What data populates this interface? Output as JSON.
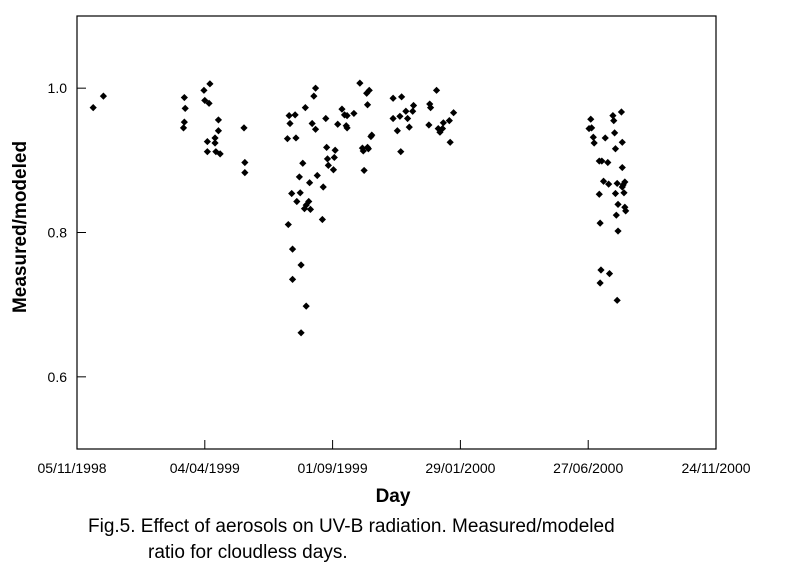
{
  "chart_data": {
    "type": "scatter",
    "title": "",
    "xlabel": "Day",
    "ylabel": "Measured/modeled",
    "x_axis": {
      "type": "date",
      "range": [
        "1998-11-05",
        "2000-11-24"
      ],
      "ticks": [
        "1998-11-05",
        "1999-04-04",
        "1999-09-01",
        "2000-01-29",
        "2000-06-27",
        "2000-11-24"
      ],
      "tick_labels": [
        "05/11/1998",
        "04/04/1999",
        "01/09/1999",
        "29/01/2000",
        "27/06/2000",
        "24/11/2000"
      ]
    },
    "y_axis": {
      "range": [
        0.5,
        1.1
      ],
      "ticks": [
        0.6,
        0.8,
        1.0
      ],
      "tick_labels": [
        "0.6",
        "0.8",
        "1.0"
      ]
    },
    "grid": false,
    "marker": "diamond",
    "marker_color": "#000000",
    "series": [
      {
        "points": [
          [
            "1998-11-24",
            0.973
          ],
          [
            "1998-12-06",
            0.989
          ],
          [
            "1999-03-10",
            0.945
          ],
          [
            "1999-03-11",
            0.953
          ],
          [
            "1999-03-11",
            0.987
          ],
          [
            "1999-03-12",
            0.972
          ],
          [
            "1999-04-03",
            0.997
          ],
          [
            "1999-04-04",
            0.983
          ],
          [
            "1999-04-07",
            0.926
          ],
          [
            "1999-04-07",
            0.912
          ],
          [
            "1999-04-09",
            0.979
          ],
          [
            "1999-04-10",
            1.006
          ],
          [
            "1999-04-16",
            0.931
          ],
          [
            "1999-04-16",
            0.924
          ],
          [
            "1999-04-17",
            0.912
          ],
          [
            "1999-04-20",
            0.956
          ],
          [
            "1999-04-20",
            0.941
          ],
          [
            "1999-04-22",
            0.909
          ],
          [
            "1999-05-20",
            0.945
          ],
          [
            "1999-05-21",
            0.897
          ],
          [
            "1999-05-21",
            0.883
          ],
          [
            "1999-07-10",
            0.93
          ],
          [
            "1999-07-11",
            0.811
          ],
          [
            "1999-07-12",
            0.962
          ],
          [
            "1999-07-13",
            0.951
          ],
          [
            "1999-07-15",
            0.854
          ],
          [
            "1999-07-16",
            0.777
          ],
          [
            "1999-07-16",
            0.735
          ],
          [
            "1999-07-19",
            0.963
          ],
          [
            "1999-07-20",
            0.931
          ],
          [
            "1999-07-21",
            0.843
          ],
          [
            "1999-07-24",
            0.877
          ],
          [
            "1999-07-25",
            0.855
          ],
          [
            "1999-07-26",
            0.755
          ],
          [
            "1999-07-26",
            0.661
          ],
          [
            "1999-07-28",
            0.896
          ],
          [
            "1999-07-30",
            0.833
          ],
          [
            "1999-07-31",
            0.973
          ],
          [
            "1999-08-01",
            0.838
          ],
          [
            "1999-08-01",
            0.698
          ],
          [
            "1999-08-04",
            0.843
          ],
          [
            "1999-08-05",
            0.869
          ],
          [
            "1999-08-06",
            0.832
          ],
          [
            "1999-08-08",
            0.951
          ],
          [
            "1999-08-10",
            0.989
          ],
          [
            "1999-08-12",
            1.0
          ],
          [
            "1999-08-12",
            0.943
          ],
          [
            "1999-08-14",
            0.879
          ],
          [
            "1999-08-20",
            0.818
          ],
          [
            "1999-08-21",
            0.863
          ],
          [
            "1999-08-24",
            0.958
          ],
          [
            "1999-08-25",
            0.918
          ],
          [
            "1999-08-26",
            0.902
          ],
          [
            "1999-08-27",
            0.893
          ],
          [
            "1999-09-02",
            0.887
          ],
          [
            "1999-09-03",
            0.904
          ],
          [
            "1999-09-04",
            0.914
          ],
          [
            "1999-09-07",
            0.95
          ],
          [
            "1999-09-12",
            0.971
          ],
          [
            "1999-09-15",
            0.963
          ],
          [
            "1999-09-17",
            0.948
          ],
          [
            "1999-09-18",
            0.945
          ],
          [
            "1999-09-18",
            0.962
          ],
          [
            "1999-09-26",
            0.965
          ],
          [
            "1999-10-03",
            1.007
          ],
          [
            "1999-10-06",
            0.917
          ],
          [
            "1999-10-07",
            0.913
          ],
          [
            "1999-10-08",
            0.886
          ],
          [
            "1999-10-11",
            0.993
          ],
          [
            "1999-10-12",
            0.977
          ],
          [
            "1999-10-12",
            0.918
          ],
          [
            "1999-10-13",
            0.916
          ],
          [
            "1999-10-14",
            0.997
          ],
          [
            "1999-10-16",
            0.933
          ],
          [
            "1999-10-17",
            0.935
          ],
          [
            "1999-11-11",
            0.986
          ],
          [
            "1999-11-11",
            0.958
          ],
          [
            "1999-11-16",
            0.941
          ],
          [
            "1999-11-19",
            0.961
          ],
          [
            "1999-11-20",
            0.912
          ],
          [
            "1999-11-21",
            0.988
          ],
          [
            "1999-11-26",
            0.968
          ],
          [
            "1999-11-28",
            0.958
          ],
          [
            "1999-11-30",
            0.946
          ],
          [
            "1999-12-04",
            0.968
          ],
          [
            "1999-12-05",
            0.976
          ],
          [
            "1999-12-23",
            0.949
          ],
          [
            "1999-12-24",
            0.978
          ],
          [
            "1999-12-25",
            0.973
          ],
          [
            "2000-01-01",
            0.997
          ],
          [
            "2000-01-03",
            0.944
          ],
          [
            "2000-01-05",
            0.939
          ],
          [
            "2000-01-08",
            0.944
          ],
          [
            "2000-01-09",
            0.952
          ],
          [
            "2000-01-16",
            0.955
          ],
          [
            "2000-01-17",
            0.925
          ],
          [
            "2000-01-21",
            0.966
          ],
          [
            "2000-06-28",
            0.944
          ],
          [
            "2000-06-30",
            0.957
          ],
          [
            "2000-07-01",
            0.945
          ],
          [
            "2000-07-03",
            0.932
          ],
          [
            "2000-07-04",
            0.924
          ],
          [
            "2000-07-10",
            0.899
          ],
          [
            "2000-07-10",
            0.853
          ],
          [
            "2000-07-11",
            0.813
          ],
          [
            "2000-07-11",
            0.73
          ],
          [
            "2000-07-12",
            0.748
          ],
          [
            "2000-07-13",
            0.899
          ],
          [
            "2000-07-15",
            0.871
          ],
          [
            "2000-07-17",
            0.931
          ],
          [
            "2000-07-20",
            0.897
          ],
          [
            "2000-07-21",
            0.867
          ],
          [
            "2000-07-22",
            0.743
          ],
          [
            "2000-07-26",
            0.962
          ],
          [
            "2000-07-27",
            0.955
          ],
          [
            "2000-07-28",
            0.938
          ],
          [
            "2000-07-29",
            0.916
          ],
          [
            "2000-07-29",
            0.854
          ],
          [
            "2000-07-30",
            0.824
          ],
          [
            "2000-07-31",
            0.868
          ],
          [
            "2000-07-31",
            0.706
          ],
          [
            "2000-08-01",
            0.839
          ],
          [
            "2000-08-01",
            0.802
          ],
          [
            "2000-08-05",
            0.967
          ],
          [
            "2000-08-06",
            0.925
          ],
          [
            "2000-08-06",
            0.89
          ],
          [
            "2000-08-06",
            0.863
          ],
          [
            "2000-08-07",
            0.866
          ],
          [
            "2000-08-08",
            0.855
          ],
          [
            "2000-08-09",
            0.87
          ],
          [
            "2000-08-09",
            0.835
          ],
          [
            "2000-08-10",
            0.83
          ]
        ]
      }
    ]
  },
  "caption": {
    "line1": "Fig.5. Effect of aerosols on UV-B radiation. Measured/modeled",
    "line2": "ratio for cloudless days."
  }
}
